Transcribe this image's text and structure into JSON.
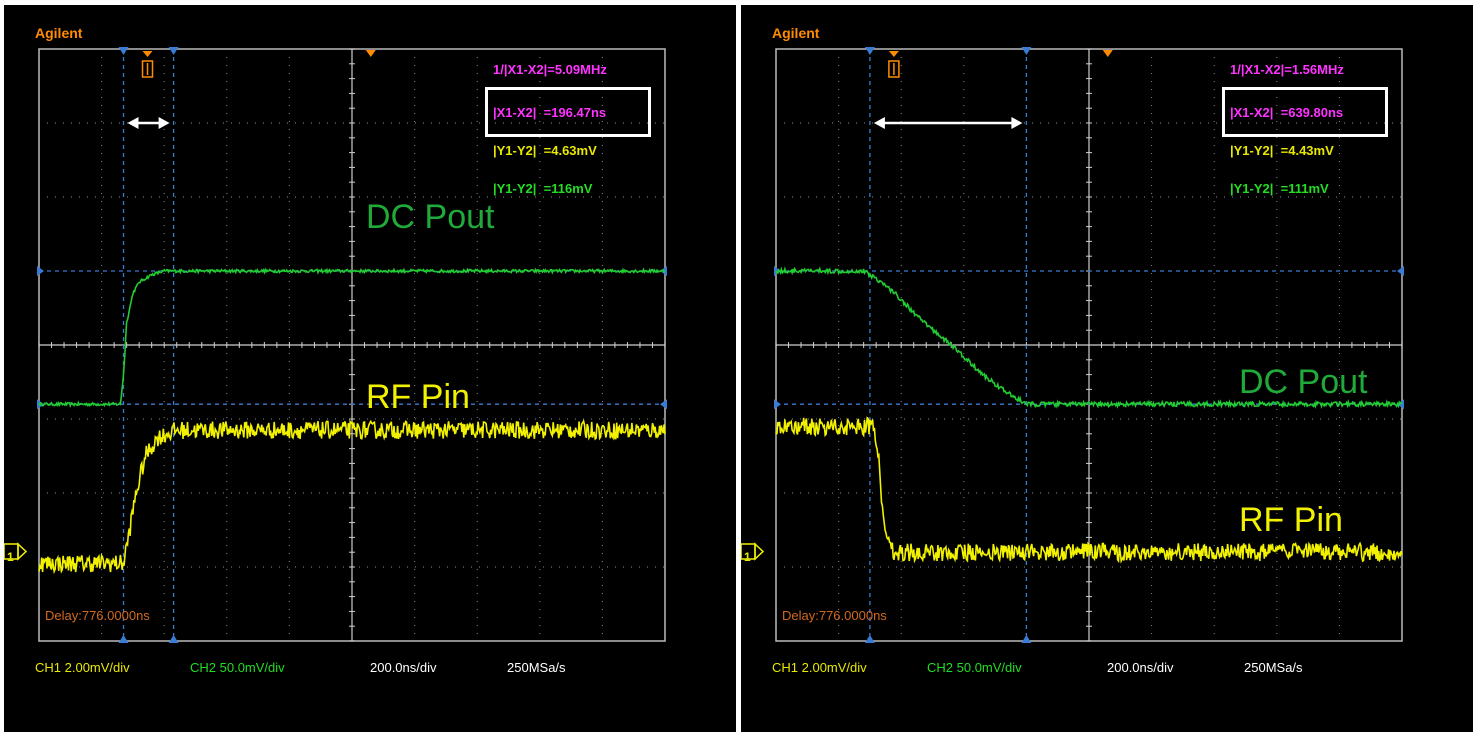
{
  "panels": [
    {
      "brand": "Agilent",
      "readouts": {
        "freq": "1/|X1-X2|=5.09MHz",
        "dt": "|X1-X2|  =196.47ns",
        "y1": "|Y1-Y2|  =4.63mV",
        "y2": "|Y1-Y2|  =116mV"
      },
      "labels": {
        "green": "DC Pout",
        "yellow": "RF Pin"
      },
      "delay": "Delay:776.0000ns",
      "status": {
        "ch1": "CH1 2.00mV/div",
        "ch2": "CH2 50.0mV/div",
        "timebase": "200.0ns/div",
        "sample_rate": "250MSa/s"
      },
      "trigger_marker": "T",
      "channel_marker": "1"
    },
    {
      "brand": "Agilent",
      "readouts": {
        "freq": "1/|X1-X2|=1.56MHz",
        "dt": "|X1-X2|  =639.80ns",
        "y1": "|Y1-Y2|  =4.43mV",
        "y2": "|Y1-Y2|  =111mV"
      },
      "labels": {
        "green": "DC Pout",
        "yellow": "RF Pin"
      },
      "delay": "Delay:776.0000ns",
      "status": {
        "ch1": "CH1 2.00mV/div",
        "ch2": "CH2 50.0mV/div",
        "timebase": "200.0ns/div",
        "sample_rate": "250MSa/s"
      },
      "trigger_marker": "T",
      "channel_marker": "1"
    }
  ],
  "colors": {
    "ch1_yellow": "#f2f200",
    "ch2_green": "#22cc33",
    "cursor_magenta": "#ff33ff",
    "grid": "#8a8a8a",
    "cursor_blue": "#3a7bd5"
  },
  "chart_data": [
    {
      "type": "line",
      "title": "",
      "x_unit": "divisions",
      "y_unit": "divisions",
      "xlim": [
        0,
        10
      ],
      "ylim": [
        0,
        8
      ],
      "x_cursors": [
        1.35,
        2.15
      ],
      "y_cursors": [
        5.0,
        3.2
      ],
      "series": [
        {
          "name": "DC Pout",
          "color": "#22cc33",
          "x": [
            0,
            1.3,
            1.35,
            1.4,
            1.5,
            1.6,
            1.8,
            2.0,
            2.5,
            10
          ],
          "y": [
            3.2,
            3.2,
            3.6,
            4.3,
            4.7,
            4.85,
            4.95,
            5.0,
            5.0,
            5.0
          ]
        },
        {
          "name": "RF Pin",
          "color": "#f2f200",
          "x": [
            0,
            1.35,
            1.45,
            1.55,
            1.7,
            1.9,
            2.2,
            10
          ],
          "y": [
            1.05,
            1.05,
            1.5,
            2.0,
            2.5,
            2.75,
            2.85,
            2.85
          ],
          "noise": 0.12
        }
      ]
    },
    {
      "type": "line",
      "title": "",
      "x_unit": "divisions",
      "y_unit": "divisions",
      "xlim": [
        0,
        10
      ],
      "ylim": [
        0,
        8
      ],
      "x_cursors": [
        1.5,
        4.0
      ],
      "y_cursors": [
        5.0,
        3.2
      ],
      "series": [
        {
          "name": "DC Pout",
          "color": "#22cc33",
          "x": [
            0,
            1.4,
            1.6,
            1.9,
            2.3,
            2.8,
            3.3,
            3.7,
            4.0,
            4.2,
            10
          ],
          "y": [
            5.0,
            5.0,
            4.9,
            4.7,
            4.35,
            4.0,
            3.6,
            3.35,
            3.2,
            3.2,
            3.2
          ],
          "noise": 0.03
        },
        {
          "name": "RF Pin",
          "color": "#f2f200",
          "x": [
            0,
            1.55,
            1.65,
            1.7,
            1.8,
            1.9,
            10
          ],
          "y": [
            2.9,
            2.9,
            2.4,
            1.8,
            1.3,
            1.2,
            1.2
          ],
          "noise": 0.12
        }
      ]
    }
  ]
}
